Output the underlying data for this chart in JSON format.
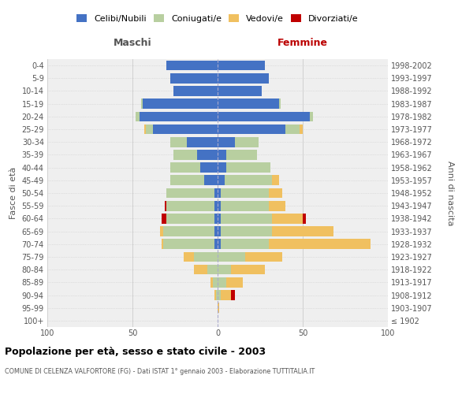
{
  "age_groups": [
    "100+",
    "95-99",
    "90-94",
    "85-89",
    "80-84",
    "75-79",
    "70-74",
    "65-69",
    "60-64",
    "55-59",
    "50-54",
    "45-49",
    "40-44",
    "35-39",
    "30-34",
    "25-29",
    "20-24",
    "15-19",
    "10-14",
    "5-9",
    "0-4"
  ],
  "birth_years": [
    "≤ 1902",
    "1903-1907",
    "1908-1912",
    "1913-1917",
    "1918-1922",
    "1923-1927",
    "1928-1932",
    "1933-1937",
    "1938-1942",
    "1943-1947",
    "1948-1952",
    "1953-1957",
    "1958-1962",
    "1963-1967",
    "1968-1972",
    "1973-1977",
    "1978-1982",
    "1983-1987",
    "1988-1992",
    "1993-1997",
    "1998-2002"
  ],
  "maschi_celibi": [
    0,
    0,
    0,
    0,
    0,
    0,
    2,
    2,
    2,
    2,
    2,
    8,
    10,
    12,
    18,
    38,
    46,
    44,
    26,
    28,
    30
  ],
  "maschi_coniugati": [
    0,
    0,
    1,
    3,
    6,
    14,
    30,
    30,
    28,
    28,
    28,
    20,
    18,
    14,
    10,
    4,
    2,
    1,
    0,
    0,
    0
  ],
  "maschi_vedovi": [
    0,
    0,
    1,
    1,
    8,
    6,
    1,
    2,
    0,
    0,
    0,
    0,
    0,
    0,
    0,
    1,
    0,
    0,
    0,
    0,
    0
  ],
  "maschi_divorziati": [
    0,
    0,
    0,
    0,
    0,
    0,
    0,
    0,
    3,
    1,
    0,
    0,
    0,
    0,
    0,
    0,
    0,
    0,
    0,
    0,
    0
  ],
  "femmine_celibi": [
    0,
    0,
    0,
    0,
    0,
    0,
    2,
    2,
    2,
    2,
    2,
    4,
    5,
    5,
    10,
    40,
    54,
    36,
    26,
    30,
    28
  ],
  "femmine_coniugati": [
    0,
    0,
    2,
    5,
    8,
    16,
    28,
    30,
    30,
    28,
    28,
    28,
    26,
    18,
    14,
    8,
    2,
    1,
    0,
    0,
    0
  ],
  "femmine_vedovi": [
    0,
    1,
    6,
    10,
    20,
    22,
    60,
    36,
    18,
    10,
    8,
    4,
    0,
    0,
    0,
    2,
    0,
    0,
    0,
    0,
    0
  ],
  "femmine_divorziati": [
    0,
    0,
    2,
    0,
    0,
    0,
    0,
    0,
    2,
    0,
    0,
    0,
    0,
    0,
    0,
    0,
    0,
    0,
    0,
    0,
    0
  ],
  "color_celibi": "#4472c4",
  "color_coniugati": "#b8cfa0",
  "color_vedovi": "#f0c060",
  "color_divorziati": "#c00000",
  "title": "Popolazione per età, sesso e stato civile - 2003",
  "subtitle": "COMUNE DI CELENZA VALFORTORE (FG) - Dati ISTAT 1° gennaio 2003 - Elaborazione TUTTITALIA.IT",
  "xlabel_left": "Maschi",
  "xlabel_right": "Femmine",
  "ylabel_left": "Fasce di età",
  "ylabel_right": "Anni di nascita",
  "legend_labels": [
    "Celibi/Nubili",
    "Coniugati/e",
    "Vedovi/e",
    "Divorziati/e"
  ],
  "xlim": 100,
  "bg_color": "#ffffff",
  "plot_bg": "#efefef",
  "grid_color": "#cccccc"
}
